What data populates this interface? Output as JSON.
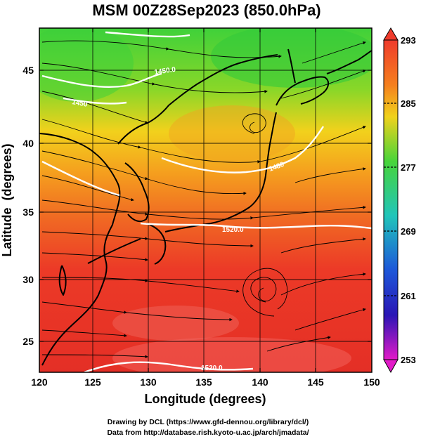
{
  "title": "MSM 00Z28Sep2023 (850.0hPa)",
  "x_axis": {
    "label": "Longitude (degrees)",
    "ticks": [
      "120",
      "125",
      "130",
      "135",
      "140",
      "145",
      "150"
    ]
  },
  "y_axis": {
    "label": "Latitude  (degrees)",
    "ticks": [
      "25",
      "30",
      "35",
      "40",
      "45"
    ]
  },
  "colorbar": {
    "ticks": [
      "293",
      "285",
      "277",
      "269",
      "261",
      "253"
    ]
  },
  "contour_labels": [
    "1450.0",
    "1450",
    "1480",
    "1520.0",
    "1520.0"
  ],
  "credits": {
    "line1": "Drawing by DCL (https://www.gfd-dennou.org/library/dcl/)",
    "line2": "Data from http://database.rish.kyoto-u.ac.jp/arch/jmadata/"
  },
  "colors": {
    "warm": "#e8352a",
    "mid": "#f5a31f",
    "cool": "#32c832",
    "frame": "#000000",
    "contour": "#ffffff"
  }
}
